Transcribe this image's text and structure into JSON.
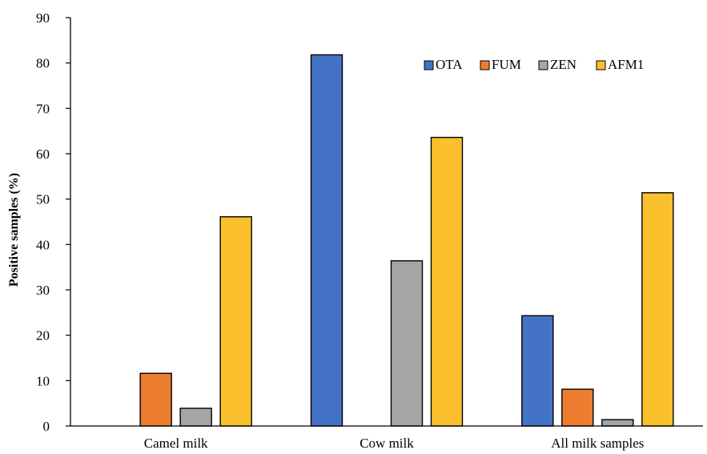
{
  "chart_data": {
    "type": "bar",
    "title": "",
    "xlabel": "",
    "ylabel": "Positive samples (%)",
    "ylim": [
      0,
      90
    ],
    "yticks": [
      0,
      10,
      20,
      30,
      40,
      50,
      60,
      70,
      80,
      90
    ],
    "grid": false,
    "legend_position": "top-right",
    "categories": [
      "Camel milk",
      "Cow milk",
      "All milk samples"
    ],
    "series": [
      {
        "name": "OTA",
        "color": "#4472C4",
        "values": [
          0,
          81.8,
          24.3
        ]
      },
      {
        "name": "FUM",
        "color": "#ED7D31",
        "values": [
          11.6,
          0,
          8.1
        ]
      },
      {
        "name": "ZEN",
        "color": "#A5A5A5",
        "values": [
          3.9,
          36.4,
          1.4
        ]
      },
      {
        "name": "AFM1",
        "color": "#FBC02D",
        "values": [
          46.1,
          63.6,
          51.4
        ]
      }
    ]
  }
}
